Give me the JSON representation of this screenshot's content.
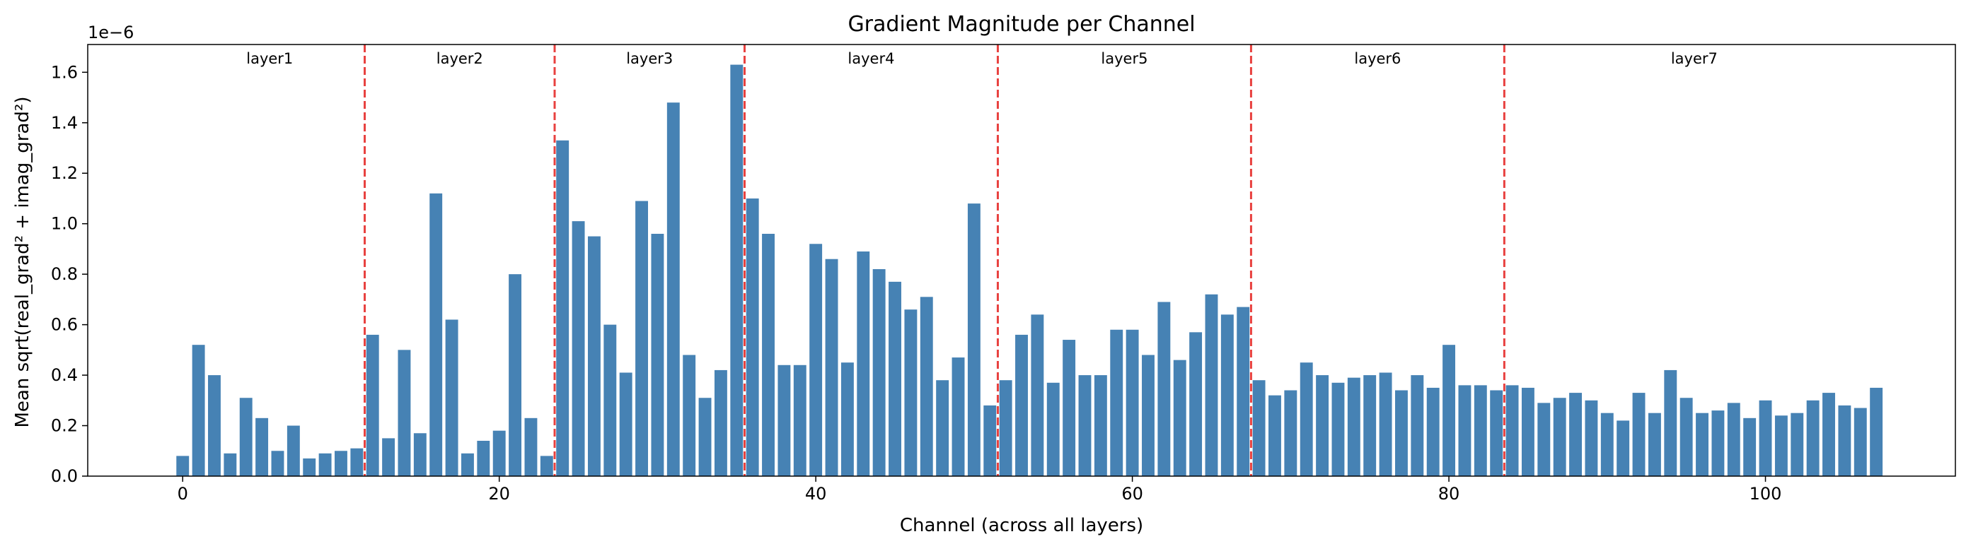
{
  "chart_data": {
    "type": "bar",
    "title": "Gradient Magnitude per Channel",
    "xlabel": "Channel (across all layers)",
    "ylabel": "Mean sqrt(real_grad² + imag_grad²)",
    "y_scale_label": "1e−6",
    "xlim": [
      -6,
      112
    ],
    "ylim": [
      0,
      1.71
    ],
    "xticks": [
      0,
      20,
      40,
      60,
      80,
      100
    ],
    "yticks": [
      0.0,
      0.2,
      0.4,
      0.6,
      0.8,
      1.0,
      1.2,
      1.4,
      1.6
    ],
    "ytick_labels": [
      "0.0",
      "0.2",
      "0.4",
      "0.6",
      "0.8",
      "1.0",
      "1.2",
      "1.4",
      "1.6"
    ],
    "grid": false,
    "bar_color": "#4682b4",
    "divider_color": "#e8413f",
    "layer_dividers": [
      11.5,
      23.5,
      35.5,
      51.5,
      67.5,
      83.5
    ],
    "layers": [
      {
        "name": "layer1",
        "center": 5.5
      },
      {
        "name": "layer2",
        "center": 17.5
      },
      {
        "name": "layer3",
        "center": 29.5
      },
      {
        "name": "layer4",
        "center": 43.5
      },
      {
        "name": "layer5",
        "center": 59.5
      },
      {
        "name": "layer6",
        "center": 75.5
      },
      {
        "name": "layer7",
        "center": 95.5
      }
    ],
    "values": [
      0.08,
      0.52,
      0.4,
      0.09,
      0.31,
      0.23,
      0.1,
      0.2,
      0.07,
      0.09,
      0.1,
      0.11,
      0.56,
      0.15,
      0.5,
      0.17,
      1.12,
      0.62,
      0.09,
      0.14,
      0.18,
      0.8,
      0.23,
      0.08,
      1.33,
      1.01,
      0.95,
      0.6,
      0.41,
      1.09,
      0.96,
      1.48,
      0.48,
      0.31,
      0.42,
      1.63,
      1.1,
      0.96,
      0.44,
      0.44,
      0.92,
      0.86,
      0.45,
      0.89,
      0.82,
      0.77,
      0.66,
      0.71,
      0.38,
      0.47,
      1.08,
      0.28,
      0.38,
      0.56,
      0.64,
      0.37,
      0.54,
      0.4,
      0.4,
      0.58,
      0.58,
      0.48,
      0.69,
      0.46,
      0.57,
      0.72,
      0.64,
      0.67,
      0.38,
      0.32,
      0.34,
      0.45,
      0.4,
      0.37,
      0.39,
      0.4,
      0.41,
      0.34,
      0.4,
      0.35,
      0.52,
      0.36,
      0.36,
      0.34,
      0.36,
      0.35,
      0.29,
      0.31,
      0.33,
      0.3,
      0.25,
      0.22,
      0.33,
      0.25,
      0.42,
      0.31,
      0.25,
      0.26,
      0.29,
      0.23,
      0.3,
      0.24,
      0.25,
      0.3,
      0.33,
      0.28,
      0.27,
      0.35
    ]
  }
}
